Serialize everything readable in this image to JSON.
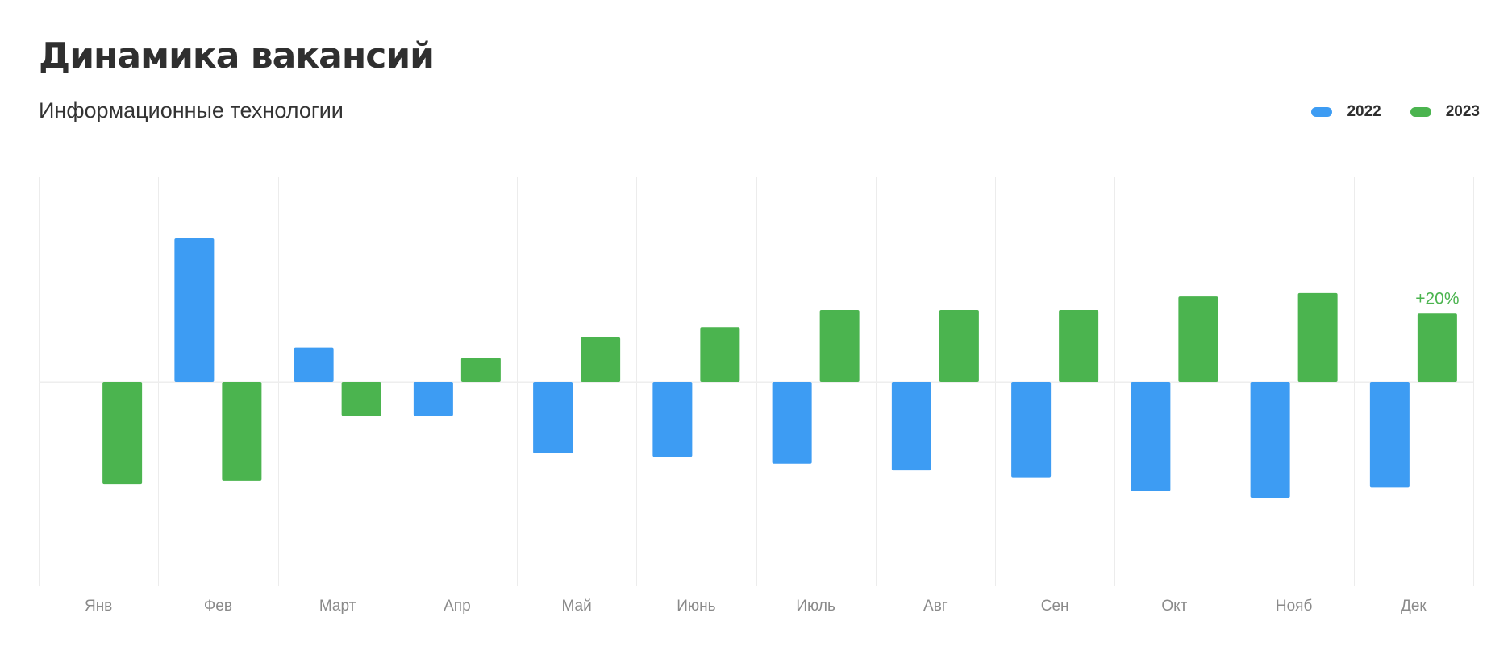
{
  "header": {
    "title": "Динамика вакансий",
    "subtitle": "Информационные технологии"
  },
  "colors": {
    "s2022": "#3d9cf3",
    "s2023": "#4bb44f",
    "grid": "#ececec",
    "zero": "#eeeeee"
  },
  "chart_data": {
    "type": "bar",
    "title": "Динамика вакансий",
    "subtitle": "Информационные технологии",
    "categories": [
      "Янв",
      "Фев",
      "Март",
      "Апр",
      "Май",
      "Июнь",
      "Июль",
      "Авг",
      "Сен",
      "Окт",
      "Нояб",
      "Дек"
    ],
    "series": [
      {
        "name": "2022",
        "color": "#3d9cf3",
        "values": [
          null,
          42,
          10,
          -10,
          -21,
          -22,
          -24,
          -26,
          -28,
          -32,
          -34,
          -31
        ]
      },
      {
        "name": "2023",
        "color": "#4bb44f",
        "values": [
          -30,
          -29,
          -10,
          7,
          13,
          16,
          21,
          21,
          21,
          25,
          26,
          20
        ]
      }
    ],
    "ylim": [
      -60,
      60
    ],
    "grid": "vertical",
    "legend_position": "top-right",
    "annotations": [
      {
        "category": "Дек",
        "series": "2023",
        "text": "+20%"
      }
    ]
  }
}
